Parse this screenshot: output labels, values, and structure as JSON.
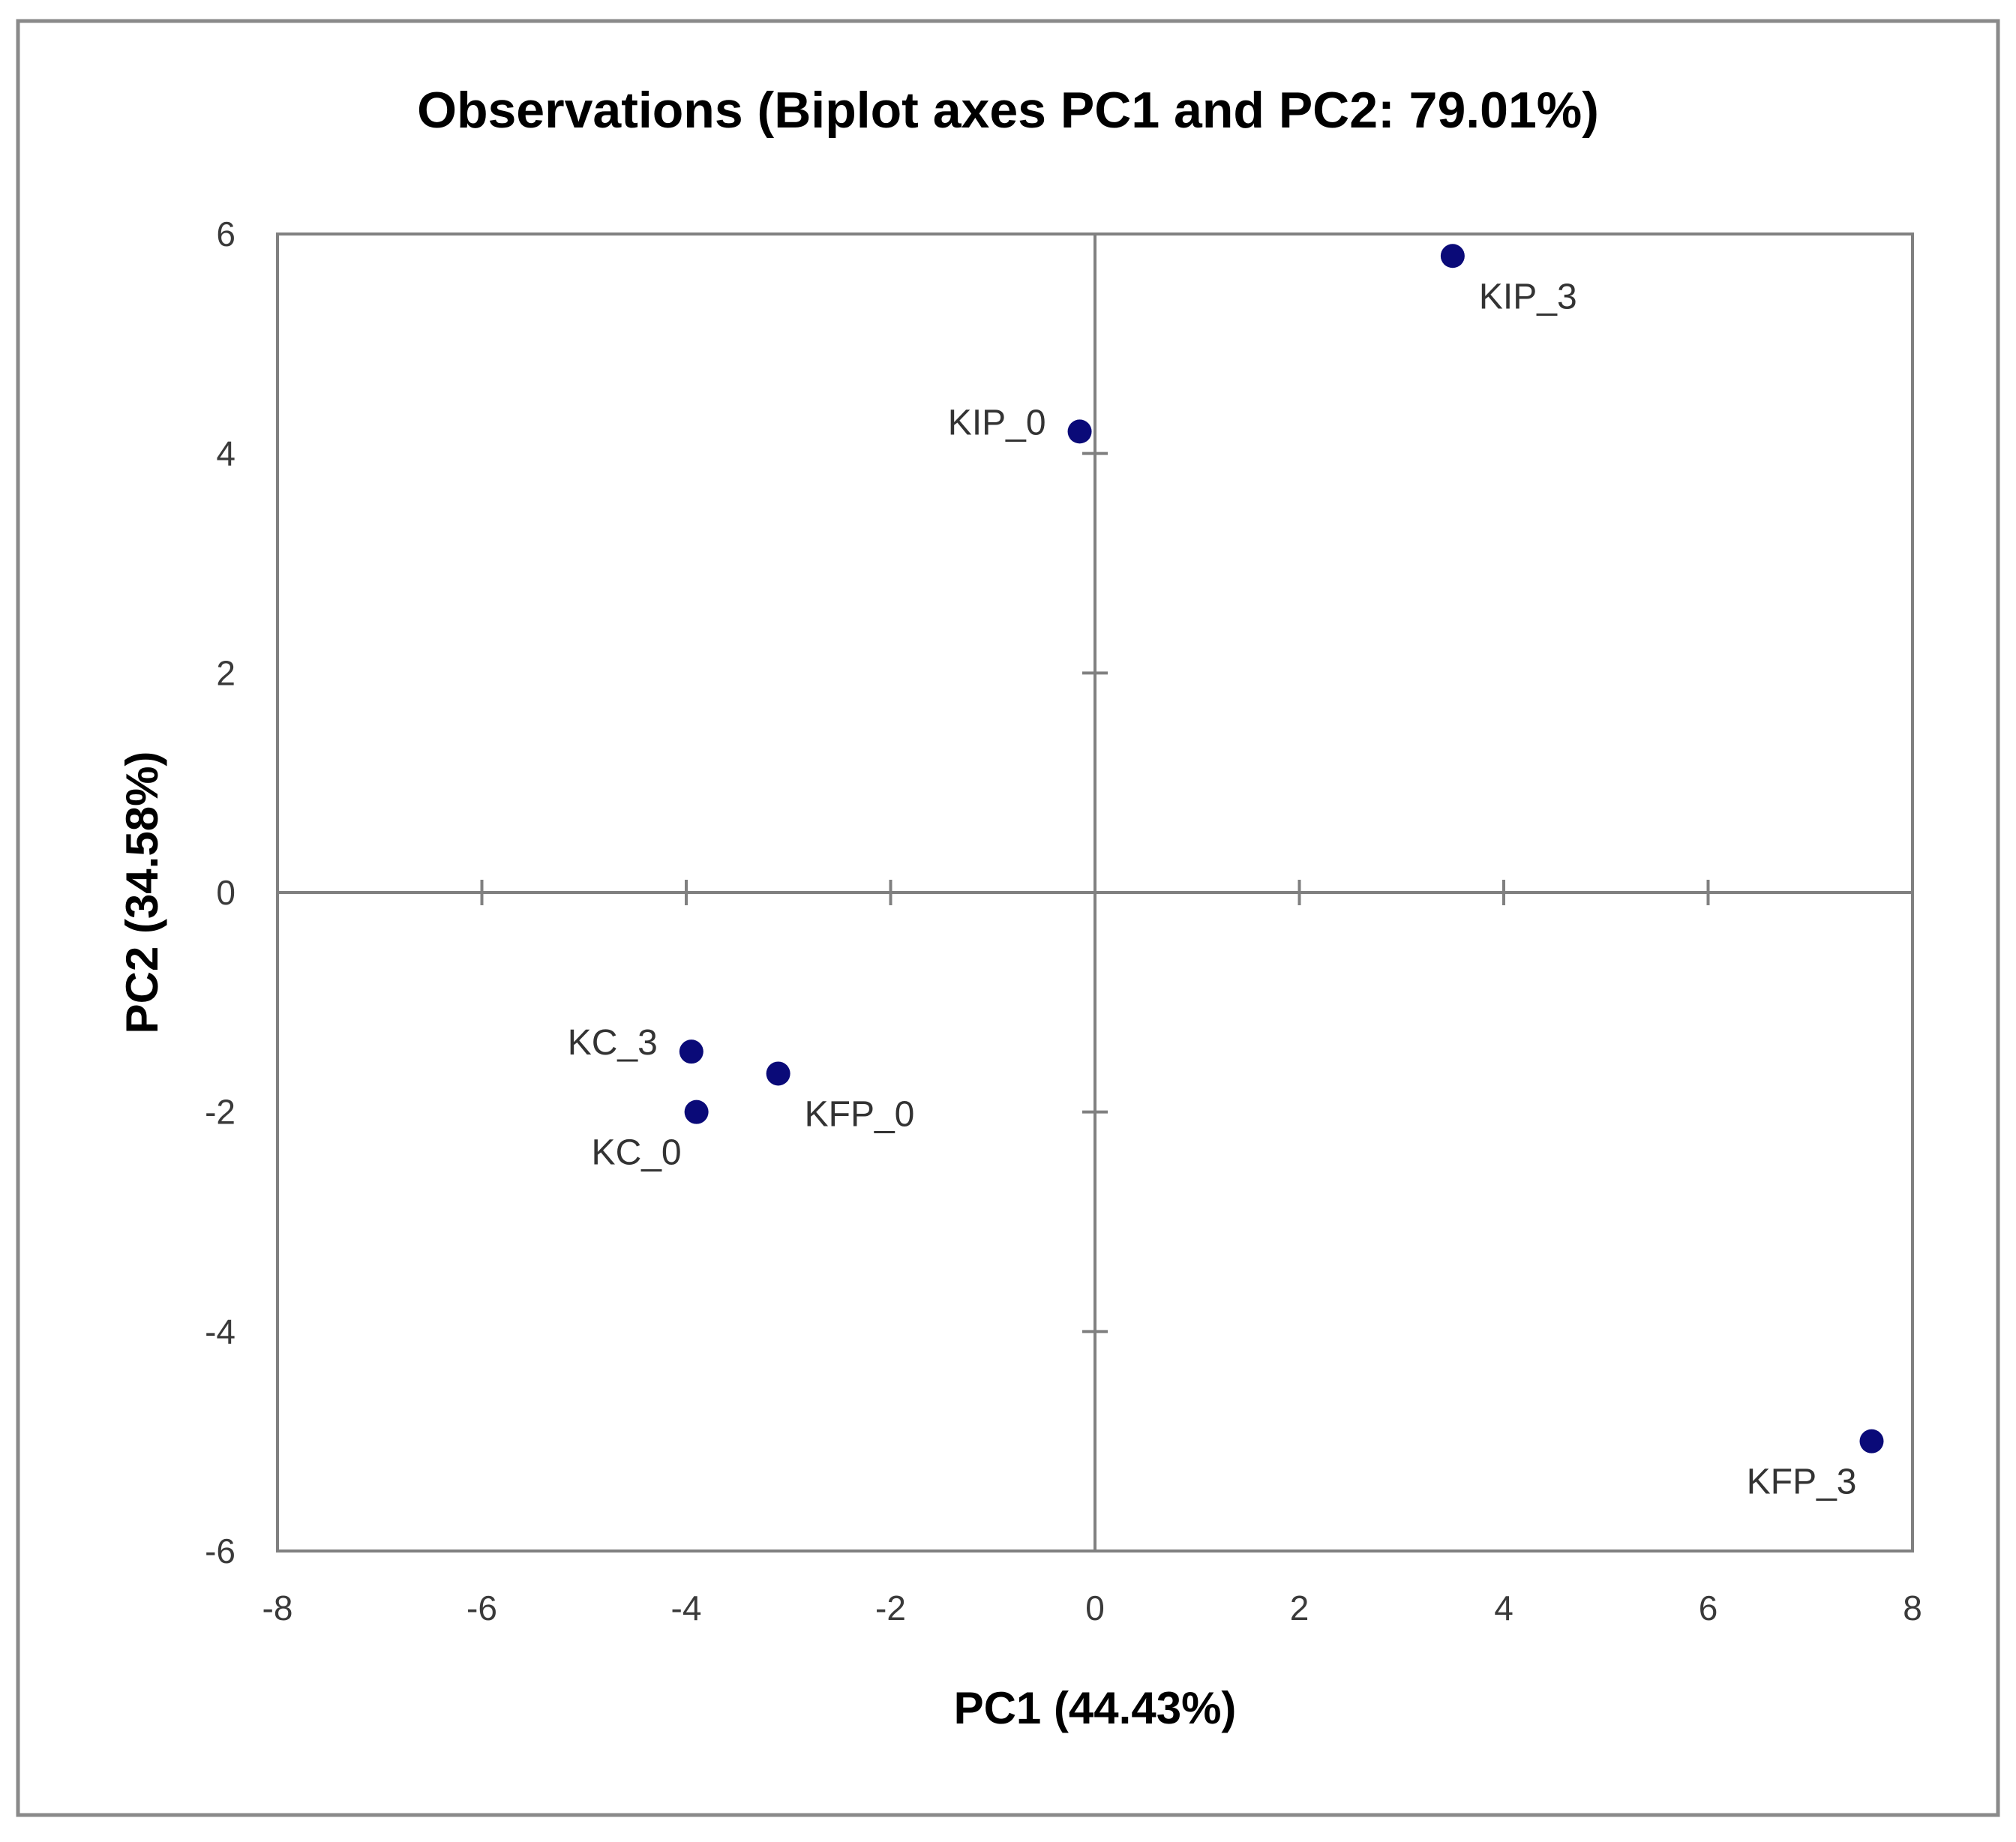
{
  "chart_data": {
    "type": "scatter",
    "title": "Observations (Biplot axes PC1 and PC2: 79.01%)",
    "xlabel": "PC1 (44.43%)",
    "ylabel": "PC2 (34.58%)",
    "xlim": [
      -8,
      8
    ],
    "ylim": [
      -6,
      6
    ],
    "x_ticks": [
      -8,
      -6,
      -4,
      -2,
      0,
      2,
      4,
      6,
      8
    ],
    "y_ticks": [
      -6,
      -4,
      -2,
      0,
      2,
      4,
      6
    ],
    "grid": false,
    "legend": "none",
    "marker_color": "#0a0a78",
    "axis_color": "#808080",
    "points": [
      {
        "label": "KIP_3",
        "x": 3.5,
        "y": 5.8,
        "label_pos": "below-right"
      },
      {
        "label": "KIP_0",
        "x": -0.15,
        "y": 4.2,
        "label_pos": "left"
      },
      {
        "label": "KC_3",
        "x": -3.95,
        "y": -1.45,
        "label_pos": "left"
      },
      {
        "label": "KFP_0",
        "x": -3.1,
        "y": -1.65,
        "label_pos": "below-right"
      },
      {
        "label": "KC_0",
        "x": -3.9,
        "y": -2.0,
        "label_pos": "below-left"
      },
      {
        "label": "KFP_3",
        "x": 7.6,
        "y": -5.0,
        "label_pos": "below-left"
      }
    ]
  }
}
